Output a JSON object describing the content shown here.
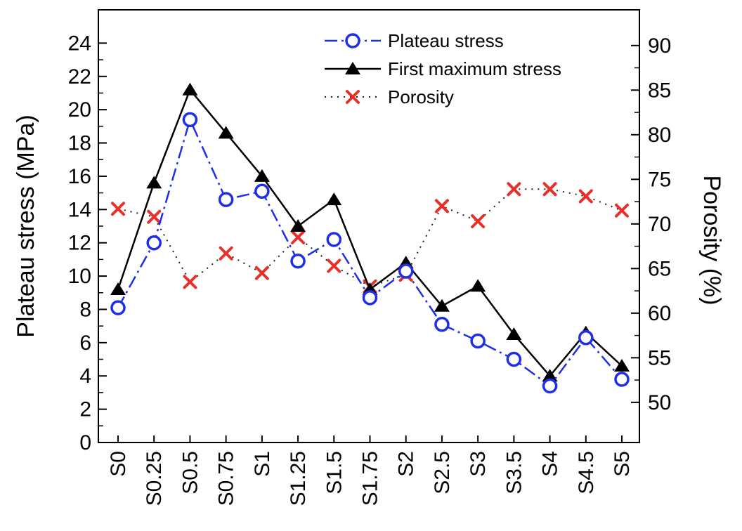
{
  "chart_data": {
    "type": "line",
    "categories": [
      "S0",
      "S0.25",
      "S0.5",
      "S0.75",
      "S1",
      "S1.25",
      "S1.5",
      "S1.75",
      "S2",
      "S2.5",
      "S3",
      "S3.5",
      "S4",
      "S4.5",
      "S5"
    ],
    "ylabel": "Plateau stress (MPa)",
    "y2label": "Porosity (%)",
    "ylim": [
      0,
      26
    ],
    "yticks": [
      0,
      2,
      4,
      6,
      8,
      10,
      12,
      14,
      16,
      18,
      20,
      22,
      24
    ],
    "y2lim": [
      45.5,
      94
    ],
    "y2ticks": [
      50,
      55,
      60,
      65,
      70,
      75,
      80,
      85,
      90
    ],
    "legend_position": "top-right",
    "series": [
      {
        "name": "Plateau stress",
        "axis": "left",
        "color": "#1f2fe8",
        "marker": "open-circle",
        "line_style": "dash-dot",
        "values": [
          8.1,
          12.0,
          19.4,
          14.6,
          15.1,
          10.9,
          12.2,
          8.7,
          10.3,
          7.1,
          6.1,
          5.0,
          3.4,
          6.3,
          3.8
        ]
      },
      {
        "name": "First maximum stress",
        "axis": "left",
        "color": "#000000",
        "marker": "filled-triangle",
        "line_style": "solid",
        "values": [
          9.2,
          15.6,
          21.2,
          18.6,
          16.0,
          13.0,
          14.6,
          9.2,
          10.8,
          8.2,
          9.4,
          6.5,
          4.0,
          6.6,
          4.6
        ]
      },
      {
        "name": "Porosity",
        "axis": "right",
        "color": "#e8302a",
        "marker": "x",
        "line_style": "dotted",
        "values": [
          71.7,
          70.8,
          63.5,
          66.7,
          64.5,
          68.5,
          65.3,
          63.0,
          64.3,
          72.0,
          70.3,
          73.9,
          73.9,
          73.1,
          71.5
        ]
      }
    ]
  }
}
